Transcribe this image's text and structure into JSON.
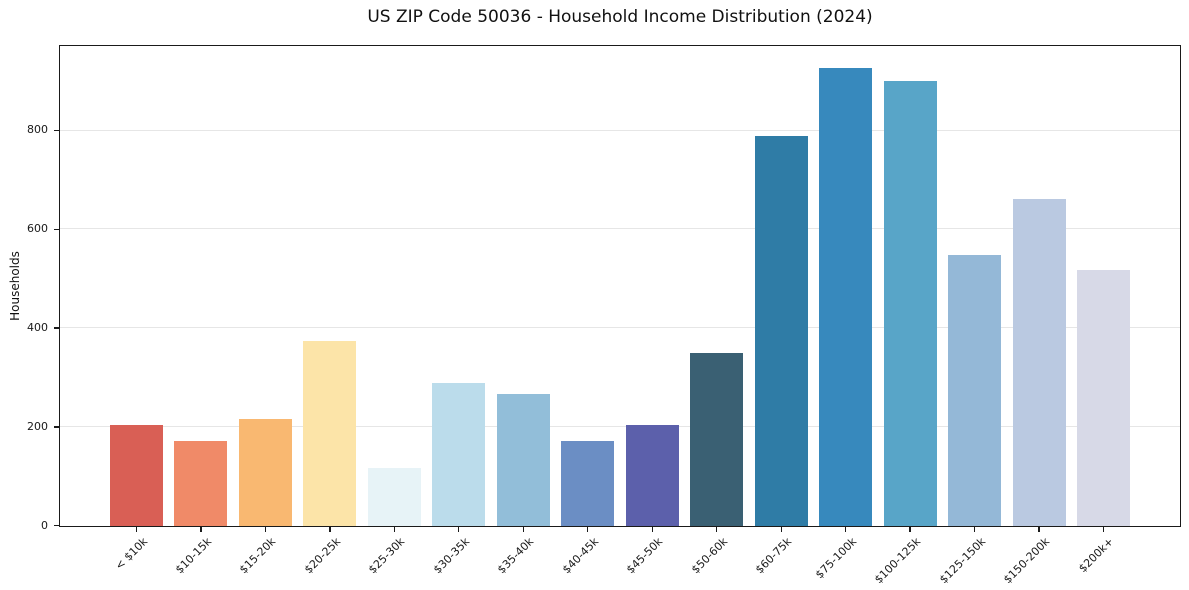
{
  "chart_data": {
    "type": "bar",
    "title": "US ZIP Code 50036 - Household Income Distribution (2024)",
    "xlabel": "",
    "ylabel": "Households",
    "categories": [
      "< $10k",
      "$10-15k",
      "$15-20k",
      "$20-25k",
      "$25-30k",
      "$30-35k",
      "$35-40k",
      "$40-45k",
      "$45-50k",
      "$50-60k",
      "$60-75k",
      "$75-100k",
      "$100-125k",
      "$125-150k",
      "$150-200k",
      "$200k+"
    ],
    "values": [
      205,
      173,
      216,
      375,
      117,
      290,
      268,
      173,
      204,
      350,
      790,
      927,
      901,
      549,
      662,
      519
    ],
    "bar_colors": [
      "#d95f55",
      "#f08a68",
      "#f9b871",
      "#fce4a8",
      "#e7f3f7",
      "#bbdceb",
      "#92bed9",
      "#6b8ec4",
      "#5c60ab",
      "#3a6073",
      "#2f7ca6",
      "#3789bd",
      "#58a5c8",
      "#94b8d7",
      "#bac9e1",
      "#d7d9e7"
    ],
    "ylim": [
      0,
      970
    ],
    "yticks": [
      0,
      200,
      400,
      600,
      800
    ],
    "grid": "horizontal",
    "grid_color": "#e6e6e6",
    "axis_color": "#1a1a1a",
    "background": "#ffffff",
    "legend": "none"
  }
}
